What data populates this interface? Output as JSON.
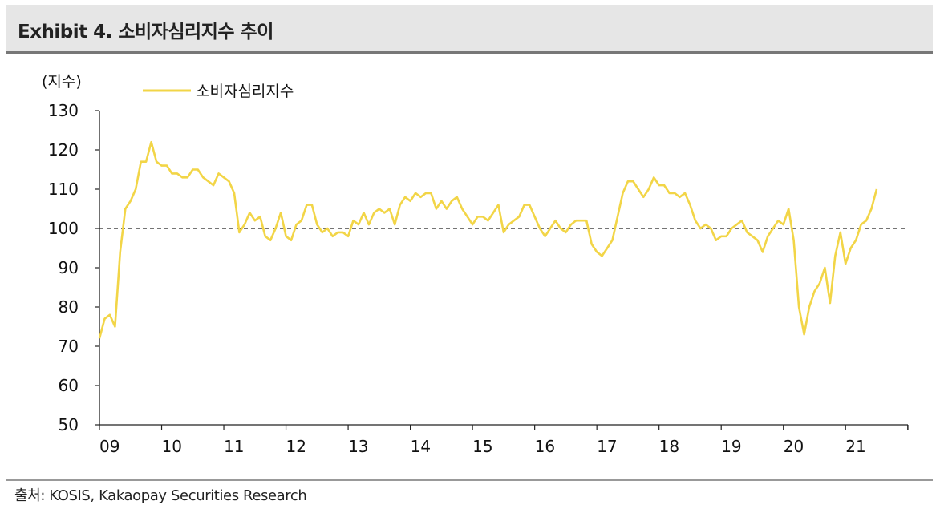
{
  "header": {
    "title": "Exhibit 4. 소비자심리지수 추이"
  },
  "source": "출처: KOSIS, Kakaopay Securities Research",
  "chart_data": {
    "type": "line",
    "yunit": "(지수)",
    "ylim": [
      50,
      130
    ],
    "yticks": [
      50,
      60,
      70,
      80,
      90,
      100,
      110,
      120,
      130
    ],
    "xticks": [
      "09",
      "10",
      "11",
      "12",
      "13",
      "14",
      "15",
      "16",
      "17",
      "18",
      "19",
      "20",
      "21"
    ],
    "reference_line": {
      "value": 100,
      "style": "dashed"
    },
    "legend_position": "top-left",
    "grid": false,
    "series": [
      {
        "name": "소비자심리지수",
        "color": "#f2d547",
        "start": "2009-01",
        "frequency": "monthly",
        "values": [
          72,
          77,
          78,
          75,
          94,
          105,
          107,
          110,
          117,
          117,
          122,
          117,
          116,
          116,
          114,
          114,
          113,
          113,
          115,
          115,
          113,
          112,
          111,
          114,
          113,
          112,
          109,
          99,
          101,
          104,
          102,
          103,
          98,
          97,
          100,
          104,
          98,
          97,
          101,
          102,
          106,
          106,
          101,
          99,
          100,
          98,
          99,
          99,
          98,
          102,
          101,
          104,
          101,
          104,
          105,
          104,
          105,
          101,
          106,
          108,
          107,
          109,
          108,
          109,
          109,
          105,
          107,
          105,
          107,
          108,
          105,
          103,
          101,
          103,
          103,
          102,
          104,
          106,
          99,
          101,
          102,
          103,
          106,
          106,
          103,
          100,
          98,
          100,
          102,
          100,
          99,
          101,
          102,
          102,
          102,
          96,
          94,
          93,
          95,
          97,
          103,
          109,
          112,
          112,
          110,
          108,
          110,
          113,
          111,
          111,
          109,
          109,
          108,
          109,
          106,
          102,
          100,
          101,
          100,
          97,
          98,
          98,
          100,
          101,
          102,
          99,
          98,
          97,
          94,
          98,
          100,
          102,
          101,
          105,
          97,
          80,
          73,
          80,
          84,
          86,
          90,
          81,
          93,
          99,
          91,
          95,
          97,
          101,
          102,
          105,
          110
        ]
      }
    ]
  }
}
